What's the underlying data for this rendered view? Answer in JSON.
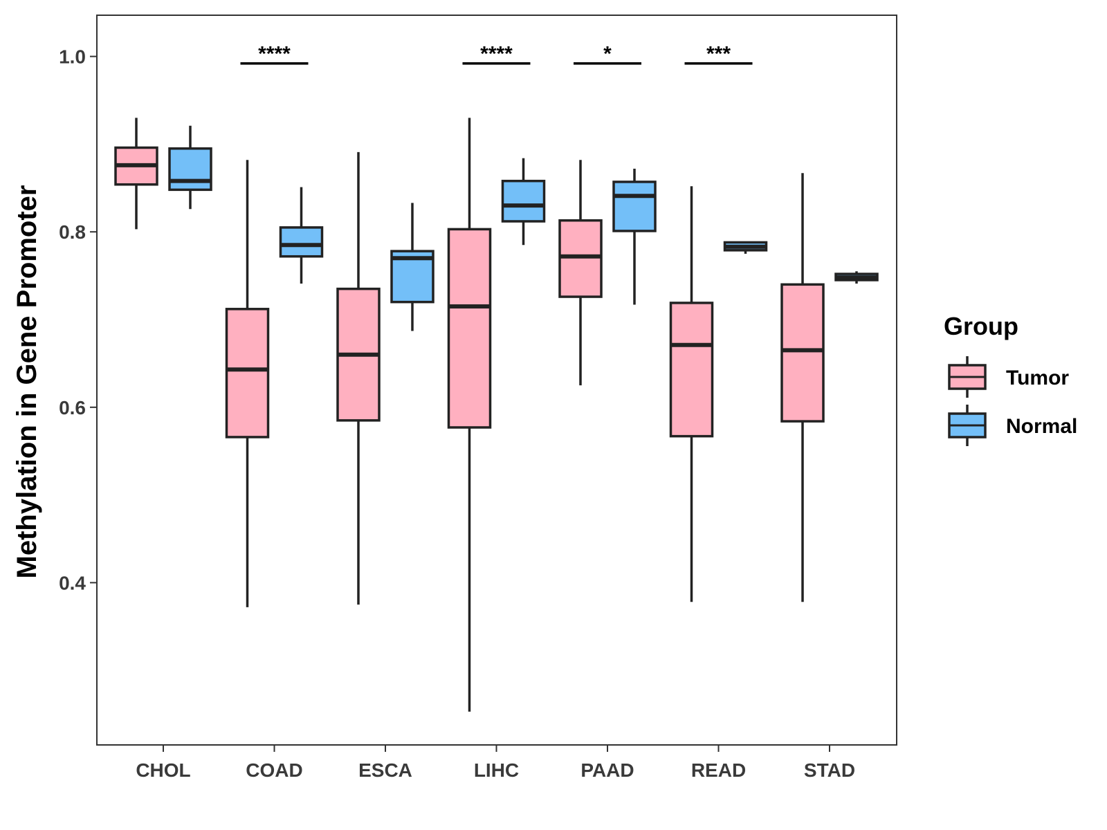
{
  "chart_data": {
    "type": "boxplot",
    "title": "",
    "xlabel": "",
    "ylabel": "Methylation in Gene Promoter",
    "ylim": [
      0.215,
      1.047
    ],
    "yticks": [
      "1.0",
      "0.8",
      "0.6",
      "0.4"
    ],
    "grid": false,
    "legend_position": "right",
    "legend_title": "Group",
    "categories": [
      "CHOL",
      "COAD",
      "ESCA",
      "LIHC",
      "PAAD",
      "READ",
      "STAD"
    ],
    "series": [
      {
        "name": "Tumor",
        "color": "#FFB0C0",
        "boxes": [
          {
            "min": 0.803,
            "q1": 0.854,
            "median": 0.876,
            "q3": 0.896,
            "max": 0.93
          },
          {
            "min": 0.372,
            "q1": 0.566,
            "median": 0.643,
            "q3": 0.712,
            "max": 0.882
          },
          {
            "min": 0.375,
            "q1": 0.585,
            "median": 0.66,
            "q3": 0.735,
            "max": 0.891
          },
          {
            "min": 0.253,
            "q1": 0.577,
            "median": 0.715,
            "q3": 0.803,
            "max": 0.93
          },
          {
            "min": 0.625,
            "q1": 0.726,
            "median": 0.772,
            "q3": 0.813,
            "max": 0.882
          },
          {
            "min": 0.378,
            "q1": 0.567,
            "median": 0.671,
            "q3": 0.719,
            "max": 0.852
          },
          {
            "min": 0.378,
            "q1": 0.584,
            "median": 0.665,
            "q3": 0.74,
            "max": 0.867
          }
        ]
      },
      {
        "name": "Normal",
        "color": "#73BFF8",
        "boxes": [
          {
            "min": 0.826,
            "q1": 0.848,
            "median": 0.858,
            "q3": 0.895,
            "max": 0.921
          },
          {
            "min": 0.741,
            "q1": 0.772,
            "median": 0.785,
            "q3": 0.805,
            "max": 0.851
          },
          {
            "min": 0.687,
            "q1": 0.72,
            "median": 0.77,
            "q3": 0.778,
            "max": 0.833
          },
          {
            "min": 0.785,
            "q1": 0.812,
            "median": 0.83,
            "q3": 0.858,
            "max": 0.884
          },
          {
            "min": 0.717,
            "q1": 0.801,
            "median": 0.841,
            "q3": 0.857,
            "max": 0.872
          },
          {
            "min": 0.775,
            "q1": 0.779,
            "median": 0.783,
            "q3": 0.788,
            "max": 0.788
          },
          {
            "min": 0.741,
            "q1": 0.745,
            "median": 0.748,
            "q3": 0.752,
            "max": 0.755
          }
        ]
      }
    ],
    "significance": [
      {
        "category": "COAD",
        "label": "****"
      },
      {
        "category": "LIHC",
        "label": "****"
      },
      {
        "category": "PAAD",
        "label": "*"
      },
      {
        "category": "READ",
        "label": "***"
      }
    ]
  }
}
